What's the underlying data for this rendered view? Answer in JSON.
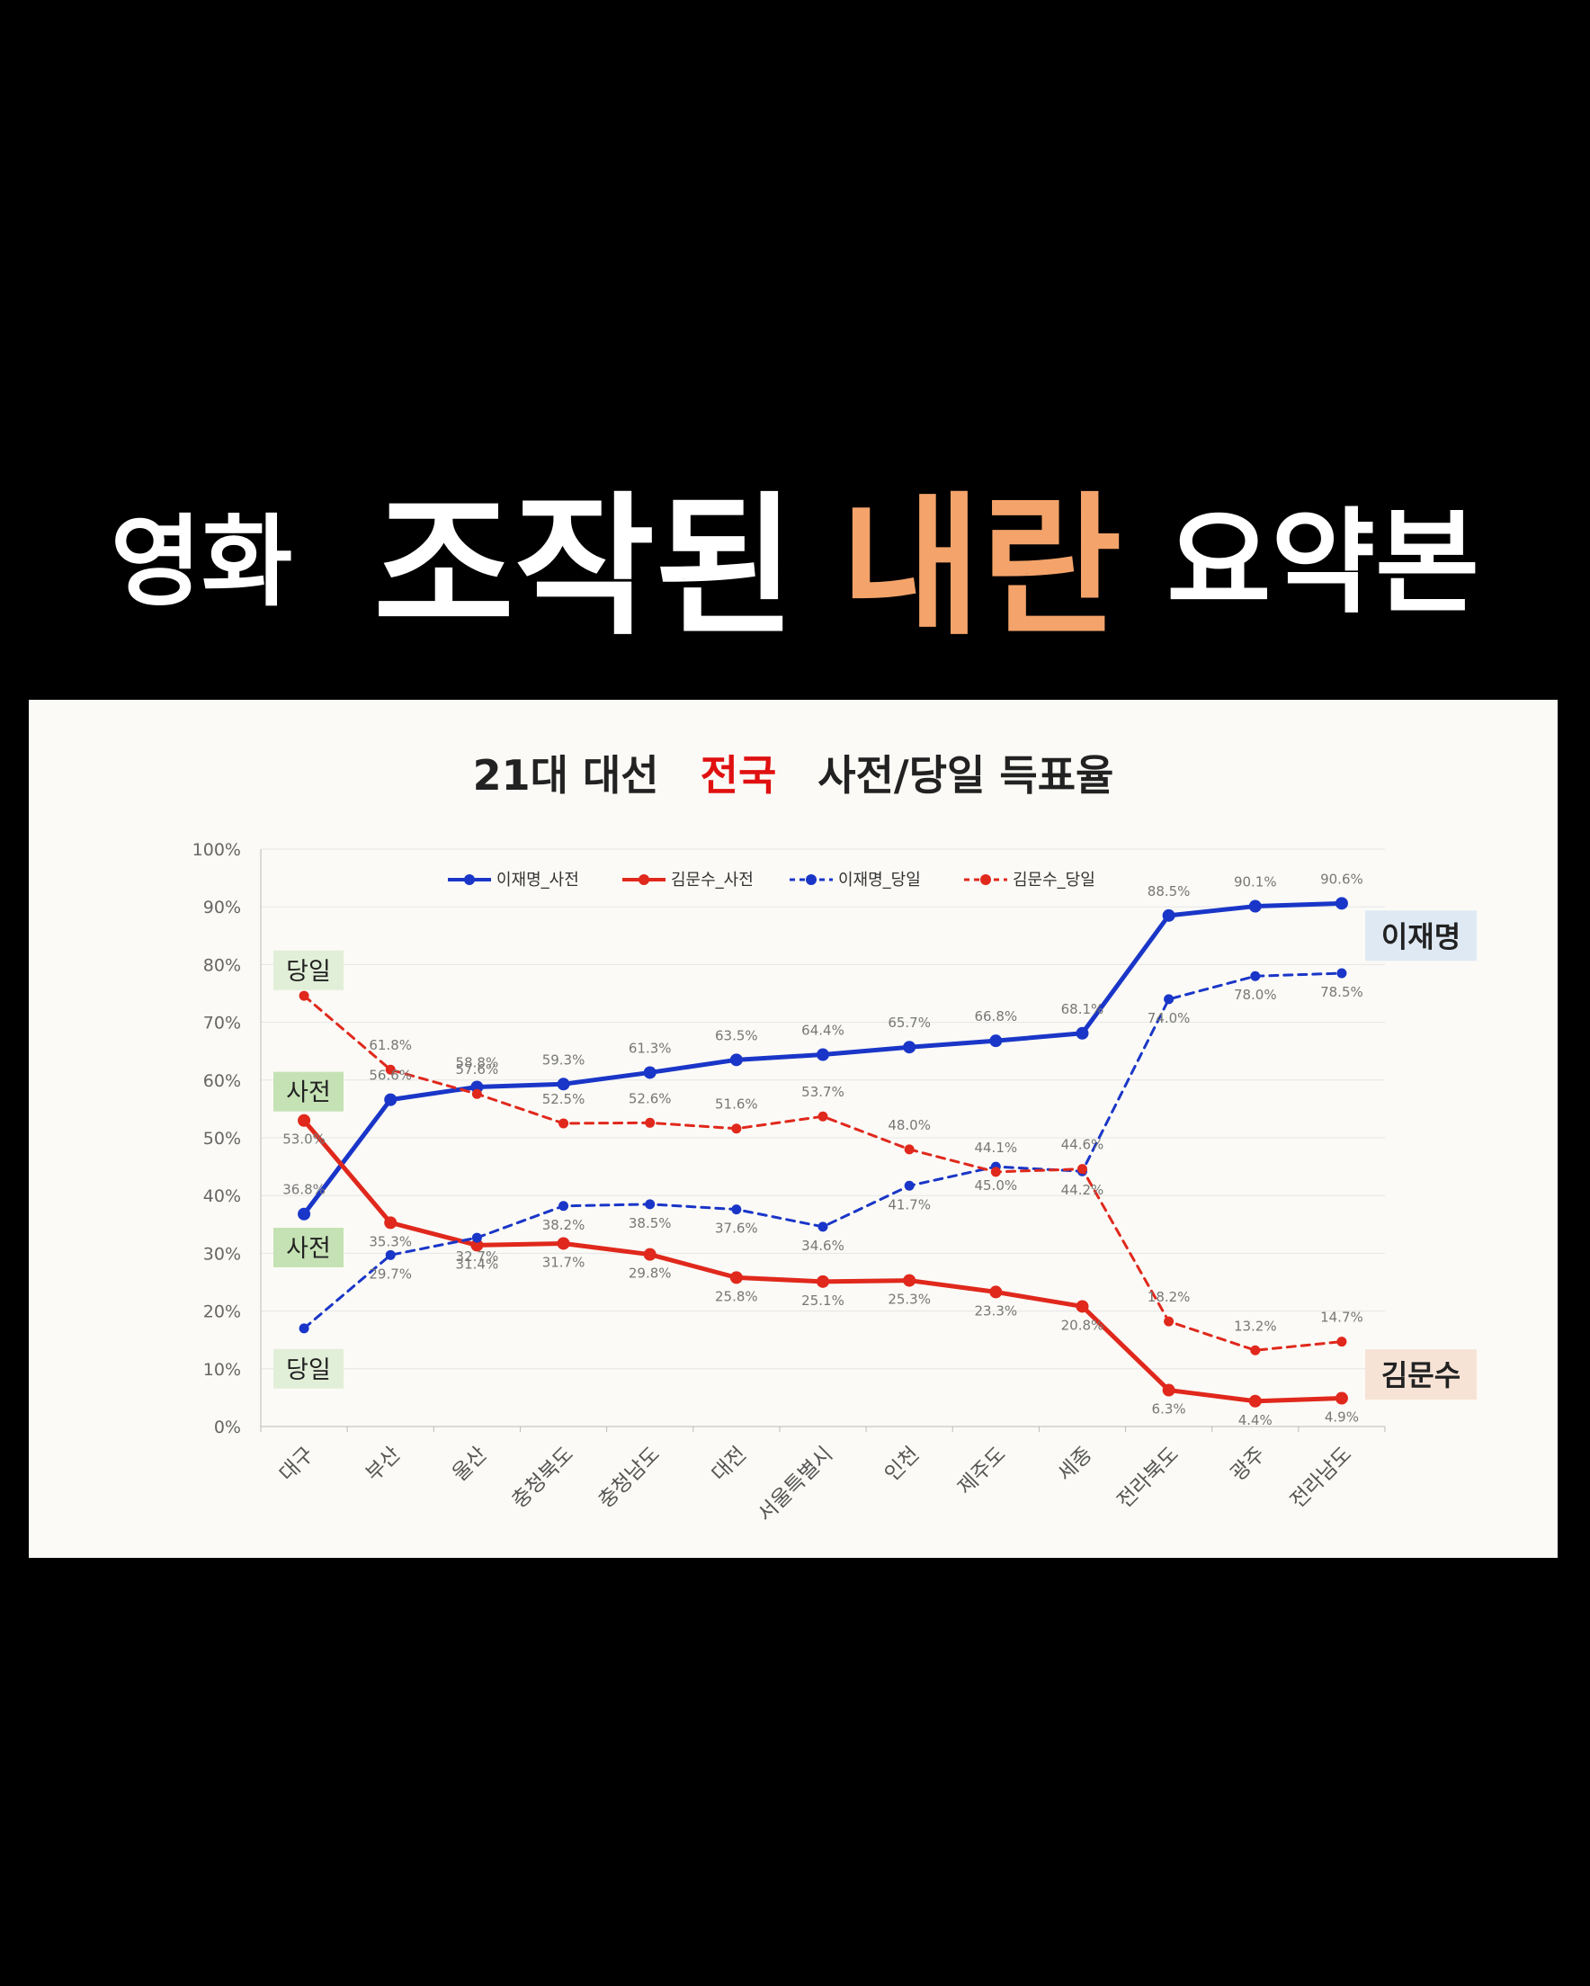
{
  "headline": {
    "part1": "영화",
    "part2": "조작된",
    "part3": "내란",
    "part4": "요약본",
    "accent_color": "#f4a36a"
  },
  "chart_data": {
    "type": "line",
    "title_parts": [
      "21대 대선",
      "전국",
      "사전/당일 득표율"
    ],
    "title_accent_color": "#e01010",
    "categories": [
      "대구",
      "부산",
      "울산",
      "충청북도",
      "충청남도",
      "대전",
      "서울특별시",
      "인천",
      "제주도",
      "세종",
      "전라북도",
      "광주",
      "전라남도"
    ],
    "ylim": [
      0,
      100
    ],
    "yticks": [
      "0%",
      "10%",
      "20%",
      "30%",
      "40%",
      "50%",
      "60%",
      "70%",
      "80%",
      "90%",
      "100%"
    ],
    "grid": true,
    "legend_position": "top-center",
    "series": [
      {
        "name": "이재명_사전",
        "color": "#1a36c8",
        "style": "solid",
        "values": [
          36.8,
          56.6,
          58.8,
          59.3,
          61.3,
          63.5,
          64.4,
          65.7,
          66.8,
          68.1,
          88.5,
          90.1,
          90.6
        ]
      },
      {
        "name": "김문수_사전",
        "color": "#e0281c",
        "style": "solid",
        "values": [
          53.0,
          35.3,
          31.4,
          31.7,
          29.8,
          25.8,
          25.1,
          25.3,
          23.3,
          20.8,
          6.3,
          4.4,
          4.9
        ]
      },
      {
        "name": "이재명_당일",
        "color": "#1a36c8",
        "style": "dashed",
        "values": [
          17.0,
          29.7,
          32.7,
          38.2,
          38.5,
          37.6,
          34.6,
          41.7,
          45.0,
          44.2,
          74.0,
          78.0,
          78.5
        ]
      },
      {
        "name": "김문수_당일",
        "color": "#e0281c",
        "style": "dashed",
        "values": [
          74.6,
          61.8,
          57.6,
          52.5,
          52.6,
          51.6,
          53.7,
          48.0,
          44.1,
          44.6,
          18.2,
          13.2,
          14.7
        ]
      }
    ],
    "point_labels": [
      {
        "series": 0,
        "labels": [
          "36.8%",
          "56.6%",
          "58.8%",
          "59.3%",
          "61.3%",
          "63.5%",
          "64.4%",
          "65.7%",
          "66.8%",
          "68.1%",
          "88.5%",
          "90.1%",
          "90.6%"
        ]
      },
      {
        "series": 1,
        "labels": [
          "53.0%",
          "35.3%",
          "31.4%",
          "31.7%",
          "29.8%",
          "25.8%",
          "25.1%",
          "25.3%",
          "23.3%",
          "20.8%",
          "6.3%",
          "4.4%",
          "4.9%"
        ]
      },
      {
        "series": 2,
        "labels": [
          "",
          "29.7%",
          "32.7%",
          "38.2%",
          "38.5%",
          "37.6%",
          "34.6%",
          "41.7%",
          "45.0%",
          "44.2%",
          "74.0%",
          "78.0%",
          "78.5%"
        ]
      },
      {
        "series": 3,
        "labels": [
          "",
          "61.8%",
          "57.6%",
          "52.5%",
          "52.6%",
          "51.6%",
          "53.7%",
          "48.0%",
          "44.1%",
          "44.6%",
          "18.2%",
          "13.2%",
          "14.7%"
        ]
      }
    ],
    "annotations": {
      "left_tags": [
        {
          "text": "당일",
          "color": "#e2efd8",
          "at": 79
        },
        {
          "text": "사전",
          "color": "#c5e2b4",
          "at": 58
        },
        {
          "text": "사전",
          "color": "#c5e2b4",
          "at": 31
        },
        {
          "text": "당일",
          "color": "#e2efd8",
          "at": 10
        }
      ],
      "end_labels": [
        {
          "text": "이재명",
          "color": "#dfe9f3",
          "at": 85
        },
        {
          "text": "김문수",
          "color": "#f7e3d6",
          "at": 9
        }
      ]
    }
  }
}
